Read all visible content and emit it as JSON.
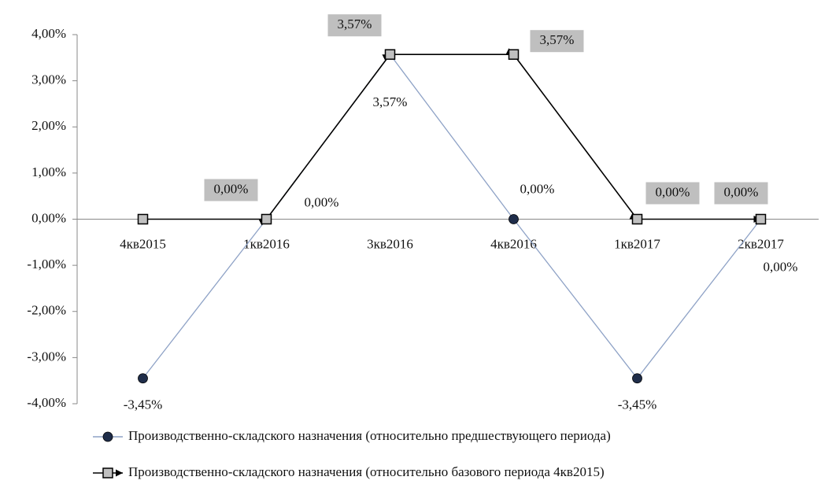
{
  "chart_data": {
    "type": "line",
    "categories": [
      "4кв2015",
      "1кв2016",
      "3кв2016",
      "4кв2016",
      "1кв2017",
      "2кв2017"
    ],
    "series": [
      {
        "name": "Производственно-складского назначения (относительно предшествующего периода)",
        "color": "#8ea2c6",
        "marker_color": "#1f2d4a",
        "values": [
          -3.45,
          0,
          3.57,
          0,
          -3.45,
          0
        ],
        "value_labels": [
          "-3,45%",
          "0,00%",
          "3,57%",
          "0,00%",
          "-3,45%",
          "0,00%"
        ]
      },
      {
        "name": "Производственно-складского назначения (относительно базового периода 4кв2015)",
        "color": "#000000",
        "marker_color": "#c0c0c0",
        "values": [
          0,
          0,
          3.57,
          3.57,
          0,
          0
        ],
        "value_labels": [
          null,
          "0,00%",
          "3,57%",
          "3,57%",
          "0,00%",
          "0,00%"
        ]
      }
    ],
    "ylim": [
      -4,
      4
    ],
    "yticks": [
      {
        "value": -4,
        "label": "-4,00%"
      },
      {
        "value": -3,
        "label": "-3,00%"
      },
      {
        "value": -2,
        "label": "-2,00%"
      },
      {
        "value": -1,
        "label": "-1,00%"
      },
      {
        "value": 0,
        "label": "0,00%"
      },
      {
        "value": 1,
        "label": "1,00%"
      },
      {
        "value": 2,
        "label": "2,00%"
      },
      {
        "value": 3,
        "label": "3,00%"
      },
      {
        "value": 4,
        "label": "4,00%"
      }
    ]
  }
}
